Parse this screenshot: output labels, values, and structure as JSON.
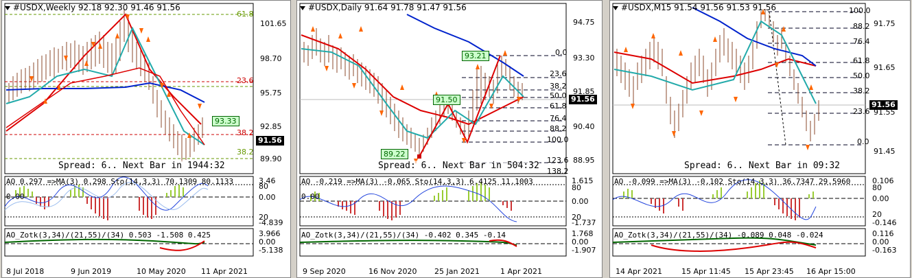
{
  "colors": {
    "candle": "#cc2200",
    "fractal": "#ff6600",
    "ma_red": "#dd0000",
    "ma_blue": "#0022cc",
    "ma_cyan": "#22aaaa",
    "fib_red": "#cc0000",
    "fib_green": "#669900",
    "ao_green": "#99cc33",
    "ao_red": "#cc3333"
  },
  "panels": [
    {
      "title": "#USDX,Weekly  92.18 92.30 91.46 91.56",
      "spread": "Spread: 6.. Next Bar in 1944:32",
      "price": "91.56",
      "price_scale": [
        "101.65",
        "98.70",
        "95.75",
        "92.85",
        "89.90"
      ],
      "fib_levels": [
        "61.8",
        "23.6",
        "38.2",
        "38.2"
      ],
      "labels": [
        "93.33"
      ],
      "ao_line": "AO 0.297 =>MA(3) 0.298  Sto(14,3,3) 70.1309 80.1133",
      "ao_scale": [
        "3.46",
        "80",
        "0.00",
        "20",
        "-4.839"
      ],
      "ao_zone": "0.00",
      "zotk_line": "AO_Zotk(3,34)/(21,55)/(34) 0.503 -1.508 0.425",
      "zotk_scale": [
        "3.966",
        "0.00",
        "-5.138"
      ],
      "dates": [
        "8 Jul 2018",
        "9 Jun 2019",
        "10 May 2020",
        "11 Apr 2021"
      ]
    },
    {
      "title": "#USDX,Daily  91.64 91.78 91.47 91.56",
      "spread": "Spread: 6.. Next Bar in 504:32",
      "price": "91.56",
      "price_scale": [
        "94.75",
        "93.30",
        "91.85",
        "90.40",
        "88.95"
      ],
      "fib_levels": [
        "0.0",
        "23.6",
        "38.2",
        "50.0",
        "61.8",
        "76.4",
        "88.2",
        "100.0",
        "123.6",
        "138.2"
      ],
      "labels": [
        "93.21",
        "91.50",
        "89.22"
      ],
      "ao_line": "AO -0.219 =>MA(3) -0.065  Sto(14,3,3) 6.4125 11.1003",
      "ao_scale": [
        "1.615",
        "80",
        "0.00",
        "20",
        "-1.737"
      ],
      "ao_zone": "0.00",
      "zotk_line": "AO_Zotk(3,34)/(21,55)/(34) -0.402 0.345 -0.14",
      "zotk_scale": [
        "1.768",
        "0.00",
        "-1.907"
      ],
      "dates": [
        "9 Sep 2020",
        "16 Nov 2020",
        "25 Jan 2021",
        "1 Apr 2021"
      ]
    },
    {
      "title": "#USDX,M15  91.54 91.56 91.53 91.56",
      "spread": "Spread: 6.. Next Bar in 09:32",
      "price": "91.56",
      "price_scale": [
        "91.75",
        "91.65",
        "91.55",
        "91.45"
      ],
      "fib_levels": [
        "100.0",
        "88.2",
        "76.4",
        "61.8",
        "50.0",
        "38.2",
        "23.6",
        "0.0"
      ],
      "labels": [],
      "ao_line": "AO -0.099 =>MA(3) -0.102  Sto(14,3,3) 36.7347 29.5960",
      "ao_scale": [
        "0.106",
        "80",
        "0.00",
        "20",
        "-0.146"
      ],
      "ao_zone": "",
      "zotk_line": "AO_Zotk(3,34)/(21,55)/(34) -0.089 0.048 -0.024",
      "zotk_scale": [
        "0.116",
        "0.00",
        "-0.163"
      ],
      "dates": [
        "14 Apr 2021",
        "15 Apr 11:45",
        "15 Apr 23:45",
        "16 Apr 15:00"
      ]
    }
  ]
}
